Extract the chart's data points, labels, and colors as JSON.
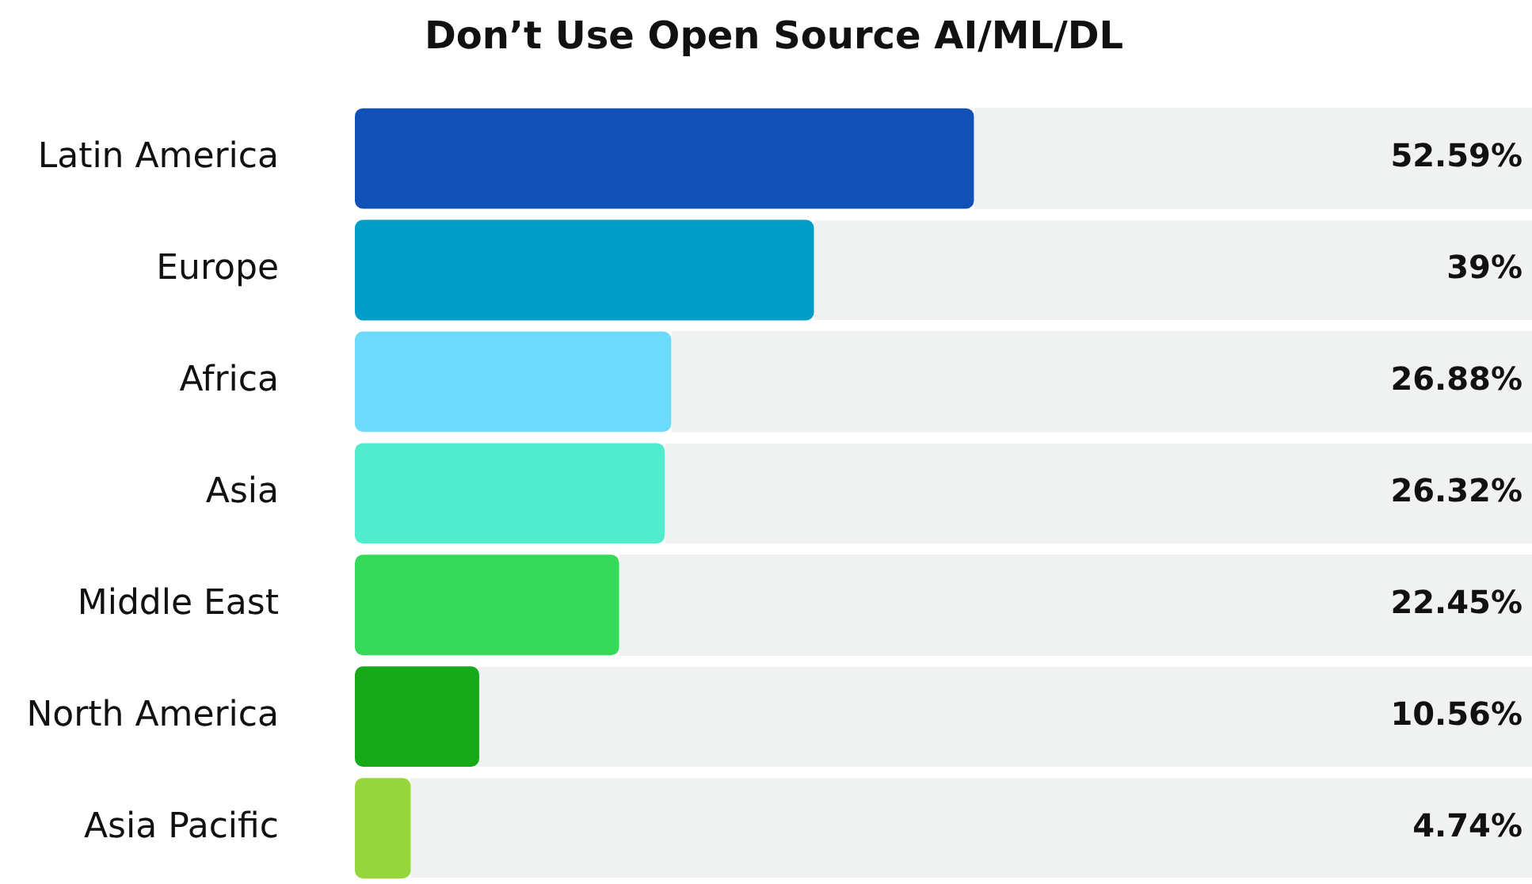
{
  "chart_data": {
    "type": "bar",
    "orientation": "horizontal",
    "title": "Don’t Use Open Source AI/ML/DL",
    "categories": [
      "Latin America",
      "Europe",
      "Africa",
      "Asia",
      "Middle East",
      "North America",
      "Asia Pacific"
    ],
    "values": [
      52.59,
      39,
      26.88,
      26.32,
      22.45,
      10.56,
      4.74
    ],
    "colors": [
      "#1150b4",
      "#009ec6",
      "#6ddafc",
      "#50eccd",
      "#36da5a",
      "#16aa18",
      "#95d63c"
    ],
    "value_labels": [
      "52.59%",
      "39%",
      "26.88%",
      "26.32%",
      "22.45%",
      "10.56%",
      "4.74%"
    ],
    "xlim": [
      0,
      100
    ],
    "tick_labels": "y"
  }
}
